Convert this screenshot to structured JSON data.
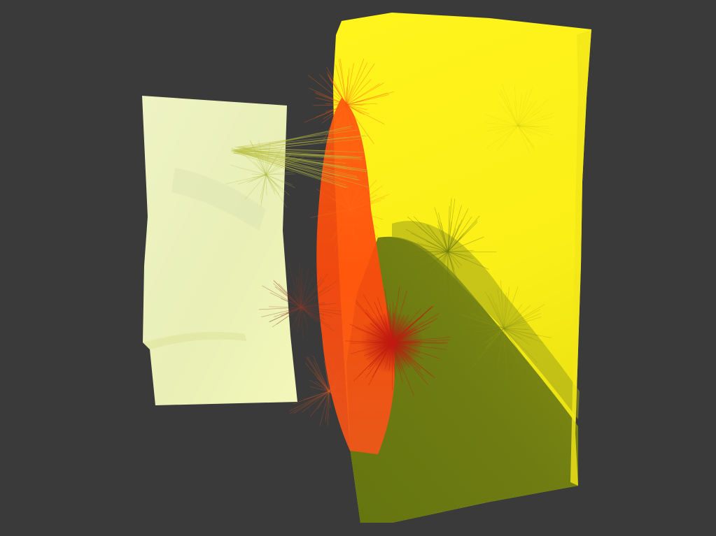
{
  "viewer": {
    "background": "#3a3a3a",
    "colors": {
      "pale_panel": "#f2f6bd",
      "yellow_block": "#fff21a",
      "olive_shadow": "#6b7a10",
      "orange_seam": "#ff4d0f",
      "red_hub": "#c41a12",
      "green_fiber": "#a8b83a"
    },
    "objects": [
      {
        "name": "pale-panel"
      },
      {
        "name": "yellow-block"
      },
      {
        "name": "orange-seam"
      },
      {
        "name": "fiber-bundles"
      }
    ]
  }
}
